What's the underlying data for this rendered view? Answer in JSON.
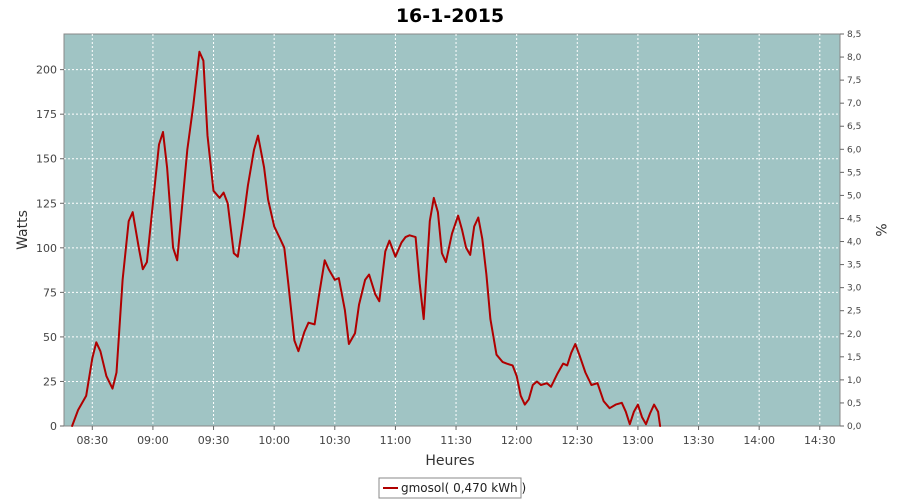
{
  "chart_data": {
    "type": "line",
    "title": "16-1-2015",
    "xlabel": "Heures",
    "ylabel": "Watts",
    "y2label": "%",
    "ylim": [
      0,
      220
    ],
    "y2lim": [
      0,
      8.5
    ],
    "yticks": [
      0,
      25,
      50,
      75,
      100,
      125,
      150,
      175,
      200
    ],
    "y2ticks": [
      "0,0",
      "0,5",
      "1,0",
      "1,5",
      "2,0",
      "2,5",
      "3,0",
      "3,5",
      "4,0",
      "4,5",
      "5,0",
      "5,5",
      "6,0",
      "6,5",
      "7,0",
      "7,5",
      "8,0",
      "8,5"
    ],
    "xlim": [
      "08:16",
      "14:40"
    ],
    "xticks": [
      "08:30",
      "09:00",
      "09:30",
      "10:00",
      "10:30",
      "11:00",
      "11:30",
      "12:00",
      "12:30",
      "13:00",
      "13:30",
      "14:00",
      "14:30"
    ],
    "grid": true,
    "plot_background": "#a0c4c4",
    "series": [
      {
        "name": "gmosol( 0,470 kWh )",
        "color": "#b00000",
        "points": [
          [
            "08:20",
            0
          ],
          [
            "08:23",
            9
          ],
          [
            "08:27",
            17
          ],
          [
            "08:30",
            38
          ],
          [
            "08:32",
            47
          ],
          [
            "08:34",
            42
          ],
          [
            "08:37",
            28
          ],
          [
            "08:40",
            21
          ],
          [
            "08:42",
            30
          ],
          [
            "08:45",
            82
          ],
          [
            "08:48",
            115
          ],
          [
            "08:50",
            120
          ],
          [
            "08:53",
            100
          ],
          [
            "08:55",
            88
          ],
          [
            "08:57",
            92
          ],
          [
            "09:00",
            125
          ],
          [
            "09:03",
            158
          ],
          [
            "09:05",
            165
          ],
          [
            "09:07",
            145
          ],
          [
            "09:10",
            100
          ],
          [
            "09:12",
            93
          ],
          [
            "09:15",
            130
          ],
          [
            "09:17",
            155
          ],
          [
            "09:20",
            180
          ],
          [
            "09:23",
            210
          ],
          [
            "09:25",
            205
          ],
          [
            "09:27",
            163
          ],
          [
            "09:30",
            132
          ],
          [
            "09:33",
            128
          ],
          [
            "09:35",
            131
          ],
          [
            "09:37",
            125
          ],
          [
            "09:40",
            97
          ],
          [
            "09:42",
            95
          ],
          [
            "09:45",
            118
          ],
          [
            "09:47",
            135
          ],
          [
            "09:50",
            155
          ],
          [
            "09:52",
            163
          ],
          [
            "09:55",
            145
          ],
          [
            "09:57",
            127
          ],
          [
            "10:00",
            112
          ],
          [
            "10:03",
            105
          ],
          [
            "10:05",
            100
          ],
          [
            "10:07",
            80
          ],
          [
            "10:10",
            48
          ],
          [
            "10:12",
            42
          ],
          [
            "10:15",
            53
          ],
          [
            "10:17",
            58
          ],
          [
            "10:20",
            57
          ],
          [
            "10:22",
            72
          ],
          [
            "10:25",
            93
          ],
          [
            "10:27",
            88
          ],
          [
            "10:30",
            82
          ],
          [
            "10:32",
            83
          ],
          [
            "10:35",
            65
          ],
          [
            "10:37",
            46
          ],
          [
            "10:40",
            52
          ],
          [
            "10:42",
            68
          ],
          [
            "10:45",
            82
          ],
          [
            "10:47",
            85
          ],
          [
            "10:50",
            74
          ],
          [
            "10:52",
            70
          ],
          [
            "10:55",
            98
          ],
          [
            "10:57",
            104
          ],
          [
            "11:00",
            95
          ],
          [
            "11:03",
            103
          ],
          [
            "11:05",
            106
          ],
          [
            "11:07",
            107
          ],
          [
            "11:10",
            106
          ],
          [
            "11:12",
            80
          ],
          [
            "11:14",
            60
          ],
          [
            "11:17",
            115
          ],
          [
            "11:19",
            128
          ],
          [
            "11:21",
            120
          ],
          [
            "11:23",
            97
          ],
          [
            "11:25",
            92
          ],
          [
            "11:28",
            108
          ],
          [
            "11:31",
            118
          ],
          [
            "11:33",
            110
          ],
          [
            "11:35",
            100
          ],
          [
            "11:37",
            96
          ],
          [
            "11:39",
            112
          ],
          [
            "11:41",
            117
          ],
          [
            "11:43",
            105
          ],
          [
            "11:45",
            85
          ],
          [
            "11:47",
            60
          ],
          [
            "11:50",
            40
          ],
          [
            "11:53",
            36
          ],
          [
            "11:55",
            35
          ],
          [
            "11:58",
            34
          ],
          [
            "12:00",
            28
          ],
          [
            "12:02",
            17
          ],
          [
            "12:04",
            12
          ],
          [
            "12:06",
            15
          ],
          [
            "12:08",
            23
          ],
          [
            "12:10",
            25
          ],
          [
            "12:12",
            23
          ],
          [
            "12:15",
            24
          ],
          [
            "12:17",
            22
          ],
          [
            "12:20",
            29
          ],
          [
            "12:23",
            35
          ],
          [
            "12:25",
            34
          ],
          [
            "12:27",
            41
          ],
          [
            "12:29",
            46
          ],
          [
            "12:31",
            40
          ],
          [
            "12:34",
            30
          ],
          [
            "12:37",
            23
          ],
          [
            "12:40",
            24
          ],
          [
            "12:43",
            14
          ],
          [
            "12:46",
            10
          ],
          [
            "12:49",
            12
          ],
          [
            "12:52",
            13
          ],
          [
            "12:54",
            8
          ],
          [
            "12:56",
            1
          ],
          [
            "12:58",
            8
          ],
          [
            "13:00",
            12
          ],
          [
            "13:02",
            5
          ],
          [
            "13:04",
            1
          ],
          [
            "13:06",
            7
          ],
          [
            "13:08",
            12
          ],
          [
            "13:10",
            8
          ],
          [
            "13:11",
            0
          ]
        ]
      }
    ],
    "legend": {
      "position": "bottom-center"
    }
  }
}
